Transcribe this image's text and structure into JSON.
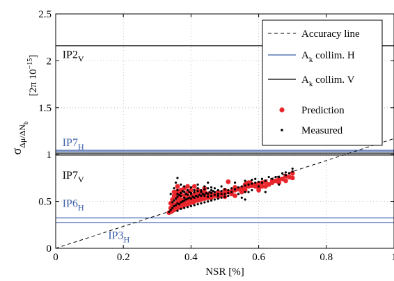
{
  "chart_data": {
    "type": "scatter",
    "title": "",
    "xlabel": "NSR [%]",
    "ylabel_main": "σ",
    "ylabel_sub": "Δμ/ΔN",
    "ylabel_subsub": "b",
    "ylabel_unit": "[2π 10",
    "ylabel_unit_exp": "−15",
    "ylabel_unit_close": "]",
    "xlim": [
      0,
      1
    ],
    "ylim": [
      0,
      2.5
    ],
    "xticks": [
      0,
      0.2,
      0.4,
      0.6,
      0.8,
      1
    ],
    "xtick_labels": [
      "0",
      "0.2",
      "0.4",
      "0.6",
      "0.8",
      "1"
    ],
    "yticks": [
      0,
      0.5,
      1,
      1.5,
      2,
      2.5
    ],
    "ytick_labels": [
      "0",
      "0.5",
      "1",
      "1.5",
      "2",
      "2.5"
    ],
    "grid": true,
    "legend_position": "top-right",
    "legend": [
      {
        "label_main": "Accuracy line",
        "label_sub": "",
        "label_rest": "",
        "style": "dashed",
        "color": "#000000"
      },
      {
        "label_main": "A",
        "label_sub": "k",
        "label_rest": " collim. H",
        "style": "line",
        "color": "#3b5ea8"
      },
      {
        "label_main": "A",
        "label_sub": "k",
        "label_rest": " collim. V",
        "style": "line",
        "color": "#000000"
      },
      {
        "label_main": "Prediction",
        "label_sub": "",
        "label_rest": "",
        "style": "dot-large",
        "color": "#e8262b"
      },
      {
        "label_main": "Measured",
        "label_sub": "",
        "label_rest": "",
        "style": "dot-small",
        "color": "#000000"
      }
    ],
    "accuracy_line": {
      "x": [
        0,
        1
      ],
      "y": [
        0,
        1.17
      ],
      "color": "#000000"
    },
    "horizontal_lines": [
      {
        "y": 2.16,
        "color": "#000000",
        "label": "IP2",
        "label_sub": "V",
        "label_x": 0.02,
        "label_y": 2.03
      },
      {
        "y": 1.045,
        "color": "#3b5ea8",
        "label": "IP7",
        "label_sub": "H",
        "label_x": 0.02,
        "label_y": 1.09
      },
      {
        "y": 1.03,
        "color": "#3b5ea8",
        "label": "",
        "label_sub": "",
        "label_x": null,
        "label_y": null
      },
      {
        "y": 1.015,
        "color": "#000000",
        "label": "",
        "label_sub": "",
        "label_x": null,
        "label_y": null
      },
      {
        "y": 0.995,
        "color": "#000000",
        "label": "IP7",
        "label_sub": "V",
        "label_x": 0.02,
        "label_y": 0.74
      },
      {
        "y": 0.325,
        "color": "#3b5ea8",
        "label": "IP6",
        "label_sub": "H",
        "label_x": 0.02,
        "label_y": 0.44
      },
      {
        "y": 0.275,
        "color": "#3b5ea8",
        "label": "IP3",
        "label_sub": "H",
        "label_x": 0.155,
        "label_y": 0.1
      }
    ],
    "series": [
      {
        "name": "Prediction",
        "color": "#e8262b",
        "points": [
          [
            0.335,
            0.38
          ],
          [
            0.34,
            0.39
          ],
          [
            0.345,
            0.4
          ],
          [
            0.35,
            0.41
          ],
          [
            0.355,
            0.42
          ],
          [
            0.36,
            0.43
          ],
          [
            0.365,
            0.44
          ],
          [
            0.37,
            0.44
          ],
          [
            0.375,
            0.45
          ],
          [
            0.38,
            0.46
          ],
          [
            0.385,
            0.47
          ],
          [
            0.39,
            0.47
          ],
          [
            0.395,
            0.48
          ],
          [
            0.4,
            0.49
          ],
          [
            0.405,
            0.49
          ],
          [
            0.41,
            0.5
          ],
          [
            0.42,
            0.51
          ],
          [
            0.43,
            0.52
          ],
          [
            0.44,
            0.53
          ],
          [
            0.45,
            0.54
          ],
          [
            0.46,
            0.55
          ],
          [
            0.47,
            0.56
          ],
          [
            0.48,
            0.57
          ],
          [
            0.49,
            0.58
          ],
          [
            0.5,
            0.59
          ],
          [
            0.51,
            0.6
          ],
          [
            0.52,
            0.61
          ],
          [
            0.53,
            0.62
          ],
          [
            0.54,
            0.63
          ],
          [
            0.55,
            0.64
          ],
          [
            0.56,
            0.65
          ],
          [
            0.57,
            0.66
          ],
          [
            0.58,
            0.67
          ],
          [
            0.59,
            0.68
          ],
          [
            0.6,
            0.69
          ],
          [
            0.61,
            0.7
          ],
          [
            0.62,
            0.71
          ],
          [
            0.64,
            0.72
          ],
          [
            0.66,
            0.74
          ],
          [
            0.68,
            0.77
          ],
          [
            0.7,
            0.8
          ],
          [
            0.35,
            0.47
          ],
          [
            0.36,
            0.5
          ],
          [
            0.36,
            0.54
          ],
          [
            0.37,
            0.52
          ],
          [
            0.38,
            0.56
          ],
          [
            0.39,
            0.6
          ],
          [
            0.4,
            0.55
          ],
          [
            0.41,
            0.58
          ],
          [
            0.42,
            0.62
          ],
          [
            0.43,
            0.6
          ],
          [
            0.44,
            0.64
          ],
          [
            0.45,
            0.58
          ],
          [
            0.36,
            0.66
          ],
          [
            0.35,
            0.6
          ],
          [
            0.37,
            0.62
          ],
          [
            0.38,
            0.64
          ],
          [
            0.39,
            0.66
          ],
          [
            0.4,
            0.62
          ],
          [
            0.41,
            0.66
          ],
          [
            0.42,
            0.55
          ],
          [
            0.44,
            0.57
          ],
          [
            0.46,
            0.58
          ],
          [
            0.48,
            0.6
          ],
          [
            0.5,
            0.62
          ],
          [
            0.52,
            0.58
          ],
          [
            0.53,
            0.56
          ],
          [
            0.55,
            0.6
          ],
          [
            0.56,
            0.62
          ],
          [
            0.57,
            0.7
          ],
          [
            0.58,
            0.68
          ],
          [
            0.59,
            0.66
          ],
          [
            0.6,
            0.64
          ],
          [
            0.62,
            0.66
          ],
          [
            0.63,
            0.68
          ],
          [
            0.64,
            0.7
          ],
          [
            0.65,
            0.72
          ],
          [
            0.66,
            0.7
          ],
          [
            0.67,
            0.74
          ],
          [
            0.68,
            0.72
          ],
          [
            0.69,
            0.76
          ],
          [
            0.7,
            0.75
          ],
          [
            0.51,
            0.71
          ],
          [
            0.53,
            0.65
          ],
          [
            0.56,
            0.68
          ],
          [
            0.565,
            0.69
          ],
          [
            0.575,
            0.7
          ],
          [
            0.6,
            0.62
          ],
          [
            0.61,
            0.66
          ],
          [
            0.62,
            0.71
          ],
          [
            0.34,
            0.43
          ],
          [
            0.345,
            0.45
          ],
          [
            0.35,
            0.44
          ],
          [
            0.355,
            0.47
          ],
          [
            0.36,
            0.46
          ],
          [
            0.365,
            0.49
          ],
          [
            0.37,
            0.48
          ],
          [
            0.375,
            0.51
          ],
          [
            0.38,
            0.5
          ],
          [
            0.385,
            0.53
          ],
          [
            0.39,
            0.52
          ],
          [
            0.395,
            0.55
          ],
          [
            0.4,
            0.52
          ],
          [
            0.405,
            0.56
          ],
          [
            0.41,
            0.54
          ],
          [
            0.415,
            0.57
          ],
          [
            0.42,
            0.58
          ],
          [
            0.425,
            0.6
          ],
          [
            0.43,
            0.56
          ],
          [
            0.435,
            0.58
          ],
          [
            0.44,
            0.6
          ],
          [
            0.445,
            0.55
          ],
          [
            0.45,
            0.57
          ],
          [
            0.46,
            0.54
          ],
          [
            0.47,
            0.57
          ],
          [
            0.48,
            0.55
          ],
          [
            0.49,
            0.57
          ],
          [
            0.5,
            0.55
          ],
          [
            0.36,
            0.61
          ],
          [
            0.37,
            0.58
          ],
          [
            0.35,
            0.56
          ],
          [
            0.34,
            0.48
          ],
          [
            0.345,
            0.52
          ],
          [
            0.355,
            0.57
          ],
          [
            0.365,
            0.55
          ]
        ]
      },
      {
        "name": "Measured",
        "color": "#000000",
        "points": [
          [
            0.335,
            0.39
          ],
          [
            0.34,
            0.41
          ],
          [
            0.345,
            0.43
          ],
          [
            0.35,
            0.45
          ],
          [
            0.355,
            0.46
          ],
          [
            0.36,
            0.48
          ],
          [
            0.365,
            0.47
          ],
          [
            0.37,
            0.49
          ],
          [
            0.375,
            0.5
          ],
          [
            0.38,
            0.51
          ],
          [
            0.385,
            0.52
          ],
          [
            0.39,
            0.53
          ],
          [
            0.395,
            0.54
          ],
          [
            0.4,
            0.53
          ],
          [
            0.405,
            0.55
          ],
          [
            0.41,
            0.54
          ],
          [
            0.415,
            0.56
          ],
          [
            0.42,
            0.55
          ],
          [
            0.425,
            0.57
          ],
          [
            0.43,
            0.56
          ],
          [
            0.435,
            0.58
          ],
          [
            0.44,
            0.57
          ],
          [
            0.445,
            0.59
          ],
          [
            0.45,
            0.58
          ],
          [
            0.455,
            0.6
          ],
          [
            0.46,
            0.59
          ],
          [
            0.465,
            0.61
          ],
          [
            0.47,
            0.6
          ],
          [
            0.48,
            0.62
          ],
          [
            0.49,
            0.61
          ],
          [
            0.5,
            0.63
          ],
          [
            0.51,
            0.62
          ],
          [
            0.52,
            0.64
          ],
          [
            0.53,
            0.63
          ],
          [
            0.54,
            0.65
          ],
          [
            0.55,
            0.66
          ],
          [
            0.56,
            0.67
          ],
          [
            0.57,
            0.68
          ],
          [
            0.58,
            0.69
          ],
          [
            0.59,
            0.7
          ],
          [
            0.6,
            0.71
          ],
          [
            0.61,
            0.7
          ],
          [
            0.62,
            0.72
          ],
          [
            0.64,
            0.74
          ],
          [
            0.66,
            0.76
          ],
          [
            0.68,
            0.78
          ],
          [
            0.7,
            0.82
          ],
          [
            0.7,
            0.85
          ],
          [
            0.69,
            0.8
          ],
          [
            0.36,
            0.75
          ],
          [
            0.355,
            0.7
          ],
          [
            0.37,
            0.68
          ],
          [
            0.35,
            0.64
          ],
          [
            0.36,
            0.62
          ],
          [
            0.34,
            0.58
          ],
          [
            0.38,
            0.66
          ],
          [
            0.4,
            0.65
          ],
          [
            0.42,
            0.68
          ],
          [
            0.44,
            0.66
          ],
          [
            0.45,
            0.7
          ],
          [
            0.47,
            0.64
          ],
          [
            0.49,
            0.66
          ],
          [
            0.46,
            0.62
          ],
          [
            0.53,
            0.7
          ],
          [
            0.56,
            0.72
          ],
          [
            0.58,
            0.73
          ],
          [
            0.59,
            0.74
          ],
          [
            0.61,
            0.74
          ],
          [
            0.63,
            0.76
          ],
          [
            0.65,
            0.76
          ],
          [
            0.67,
            0.8
          ],
          [
            0.68,
            0.81
          ],
          [
            0.55,
            0.54
          ],
          [
            0.56,
            0.52
          ],
          [
            0.57,
            0.6
          ],
          [
            0.62,
            0.6
          ],
          [
            0.66,
            0.68
          ],
          [
            0.36,
            0.4
          ],
          [
            0.37,
            0.42
          ],
          [
            0.38,
            0.43
          ],
          [
            0.39,
            0.44
          ],
          [
            0.4,
            0.45
          ],
          [
            0.41,
            0.46
          ],
          [
            0.42,
            0.47
          ],
          [
            0.43,
            0.48
          ],
          [
            0.44,
            0.49
          ],
          [
            0.45,
            0.5
          ],
          [
            0.46,
            0.51
          ],
          [
            0.47,
            0.52
          ],
          [
            0.48,
            0.53
          ],
          [
            0.49,
            0.54
          ],
          [
            0.5,
            0.55
          ],
          [
            0.51,
            0.56
          ],
          [
            0.345,
            0.49
          ],
          [
            0.35,
            0.51
          ],
          [
            0.355,
            0.53
          ],
          [
            0.36,
            0.55
          ],
          [
            0.365,
            0.57
          ],
          [
            0.37,
            0.59
          ],
          [
            0.375,
            0.61
          ],
          [
            0.38,
            0.6
          ],
          [
            0.385,
            0.58
          ],
          [
            0.39,
            0.62
          ],
          [
            0.395,
            0.6
          ],
          [
            0.4,
            0.59
          ],
          [
            0.41,
            0.6
          ],
          [
            0.42,
            0.61
          ],
          [
            0.43,
            0.62
          ],
          [
            0.44,
            0.63
          ],
          [
            0.45,
            0.64
          ],
          [
            0.46,
            0.65
          ],
          [
            0.48,
            0.58
          ],
          [
            0.5,
            0.58
          ],
          [
            0.52,
            0.6
          ],
          [
            0.54,
            0.58
          ],
          [
            0.56,
            0.6
          ],
          [
            0.58,
            0.62
          ],
          [
            0.6,
            0.66
          ],
          [
            0.36,
            0.58
          ],
          [
            0.37,
            0.56
          ],
          [
            0.38,
            0.54
          ],
          [
            0.39,
            0.57
          ],
          [
            0.4,
            0.58
          ],
          [
            0.41,
            0.62
          ],
          [
            0.42,
            0.64
          ],
          [
            0.43,
            0.6
          ],
          [
            0.44,
            0.56
          ],
          [
            0.45,
            0.55
          ],
          [
            0.46,
            0.56
          ],
          [
            0.47,
            0.57
          ],
          [
            0.48,
            0.56
          ],
          [
            0.49,
            0.58
          ],
          [
            0.51,
            0.59
          ]
        ]
      }
    ]
  }
}
